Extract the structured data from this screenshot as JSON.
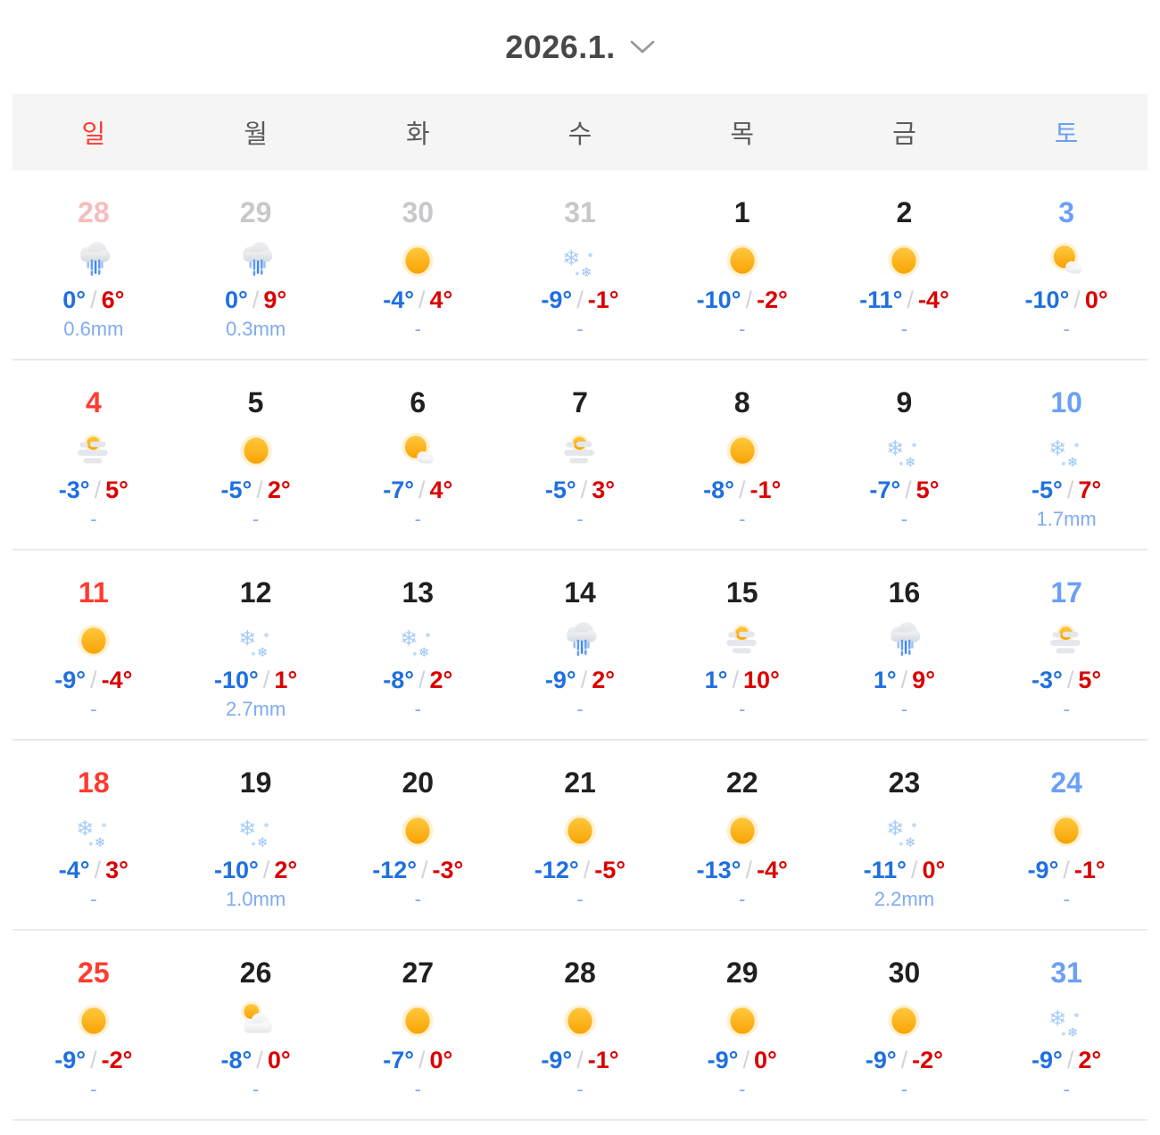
{
  "header": {
    "title": "2026.1.",
    "chevron_icon": "chevron-down"
  },
  "weekdays": [
    "일",
    "월",
    "화",
    "수",
    "목",
    "금",
    "토"
  ],
  "colors": {
    "sunday_red": "#ff3b30",
    "saturday_blue": "#6ba0f5",
    "weekday_gray": "#59595e",
    "low_temp_blue": "#1f6fe0",
    "high_temp_red": "#db0000",
    "precip_blue": "#7fabf2",
    "muted_gray": "#c6c8cb",
    "muted_pink": "#f6bcbe",
    "header_band_bg": "#f5f5f6",
    "sun_orange": "#f8a404"
  },
  "weeks": [
    [
      {
        "day": "28",
        "muted": true,
        "icon": "rain",
        "low": "0°",
        "high": "6°",
        "precip": "0.6mm"
      },
      {
        "day": "29",
        "muted": true,
        "icon": "rain",
        "low": "0°",
        "high": "9°",
        "precip": "0.3mm"
      },
      {
        "day": "30",
        "muted": true,
        "icon": "sunny",
        "low": "-4°",
        "high": "4°",
        "precip": "-"
      },
      {
        "day": "31",
        "muted": true,
        "icon": "snow",
        "low": "-9°",
        "high": "-1°",
        "precip": "-"
      },
      {
        "day": "1",
        "muted": false,
        "icon": "sunny",
        "low": "-10°",
        "high": "-2°",
        "precip": "-"
      },
      {
        "day": "2",
        "muted": false,
        "icon": "sunny",
        "low": "-11°",
        "high": "-4°",
        "precip": "-"
      },
      {
        "day": "3",
        "muted": false,
        "icon": "partly-cloudy",
        "low": "-10°",
        "high": "0°",
        "precip": "-"
      }
    ],
    [
      {
        "day": "4",
        "muted": false,
        "icon": "haze",
        "low": "-3°",
        "high": "5°",
        "precip": "-"
      },
      {
        "day": "5",
        "muted": false,
        "icon": "sunny",
        "low": "-5°",
        "high": "2°",
        "precip": "-"
      },
      {
        "day": "6",
        "muted": false,
        "icon": "partly-cloudy",
        "low": "-7°",
        "high": "4°",
        "precip": "-"
      },
      {
        "day": "7",
        "muted": false,
        "icon": "haze",
        "low": "-5°",
        "high": "3°",
        "precip": "-"
      },
      {
        "day": "8",
        "muted": false,
        "icon": "sunny",
        "low": "-8°",
        "high": "-1°",
        "precip": "-"
      },
      {
        "day": "9",
        "muted": false,
        "icon": "snow",
        "low": "-7°",
        "high": "5°",
        "precip": "-"
      },
      {
        "day": "10",
        "muted": false,
        "icon": "snow",
        "low": "-5°",
        "high": "7°",
        "precip": "1.7mm"
      }
    ],
    [
      {
        "day": "11",
        "muted": false,
        "icon": "sunny",
        "low": "-9°",
        "high": "-4°",
        "precip": "-"
      },
      {
        "day": "12",
        "muted": false,
        "icon": "snow",
        "low": "-10°",
        "high": "1°",
        "precip": "2.7mm"
      },
      {
        "day": "13",
        "muted": false,
        "icon": "snow",
        "low": "-8°",
        "high": "2°",
        "precip": "-"
      },
      {
        "day": "14",
        "muted": false,
        "icon": "rain",
        "low": "-9°",
        "high": "2°",
        "precip": "-"
      },
      {
        "day": "15",
        "muted": false,
        "icon": "haze",
        "low": "1°",
        "high": "10°",
        "precip": "-"
      },
      {
        "day": "16",
        "muted": false,
        "icon": "rain",
        "low": "1°",
        "high": "9°",
        "precip": "-"
      },
      {
        "day": "17",
        "muted": false,
        "icon": "haze",
        "low": "-3°",
        "high": "5°",
        "precip": "-"
      }
    ],
    [
      {
        "day": "18",
        "muted": false,
        "icon": "snow",
        "low": "-4°",
        "high": "3°",
        "precip": "-"
      },
      {
        "day": "19",
        "muted": false,
        "icon": "snow",
        "low": "-10°",
        "high": "2°",
        "precip": "1.0mm"
      },
      {
        "day": "20",
        "muted": false,
        "icon": "sunny",
        "low": "-12°",
        "high": "-3°",
        "precip": "-"
      },
      {
        "day": "21",
        "muted": false,
        "icon": "sunny",
        "low": "-12°",
        "high": "-5°",
        "precip": "-"
      },
      {
        "day": "22",
        "muted": false,
        "icon": "sunny",
        "low": "-13°",
        "high": "-4°",
        "precip": "-"
      },
      {
        "day": "23",
        "muted": false,
        "icon": "snow",
        "low": "-11°",
        "high": "0°",
        "precip": "2.2mm"
      },
      {
        "day": "24",
        "muted": false,
        "icon": "sunny",
        "low": "-9°",
        "high": "-1°",
        "precip": "-"
      }
    ],
    [
      {
        "day": "25",
        "muted": false,
        "icon": "sunny",
        "low": "-9°",
        "high": "-2°",
        "precip": "-"
      },
      {
        "day": "26",
        "muted": false,
        "icon": "mostly-cloudy",
        "low": "-8°",
        "high": "0°",
        "precip": "-"
      },
      {
        "day": "27",
        "muted": false,
        "icon": "sunny",
        "low": "-7°",
        "high": "0°",
        "precip": "-"
      },
      {
        "day": "28",
        "muted": false,
        "icon": "sunny",
        "low": "-9°",
        "high": "-1°",
        "precip": "-"
      },
      {
        "day": "29",
        "muted": false,
        "icon": "sunny",
        "low": "-9°",
        "high": "0°",
        "precip": "-"
      },
      {
        "day": "30",
        "muted": false,
        "icon": "sunny",
        "low": "-9°",
        "high": "-2°",
        "precip": "-"
      },
      {
        "day": "31",
        "muted": false,
        "icon": "snow",
        "low": "-9°",
        "high": "2°",
        "precip": "-"
      }
    ]
  ]
}
